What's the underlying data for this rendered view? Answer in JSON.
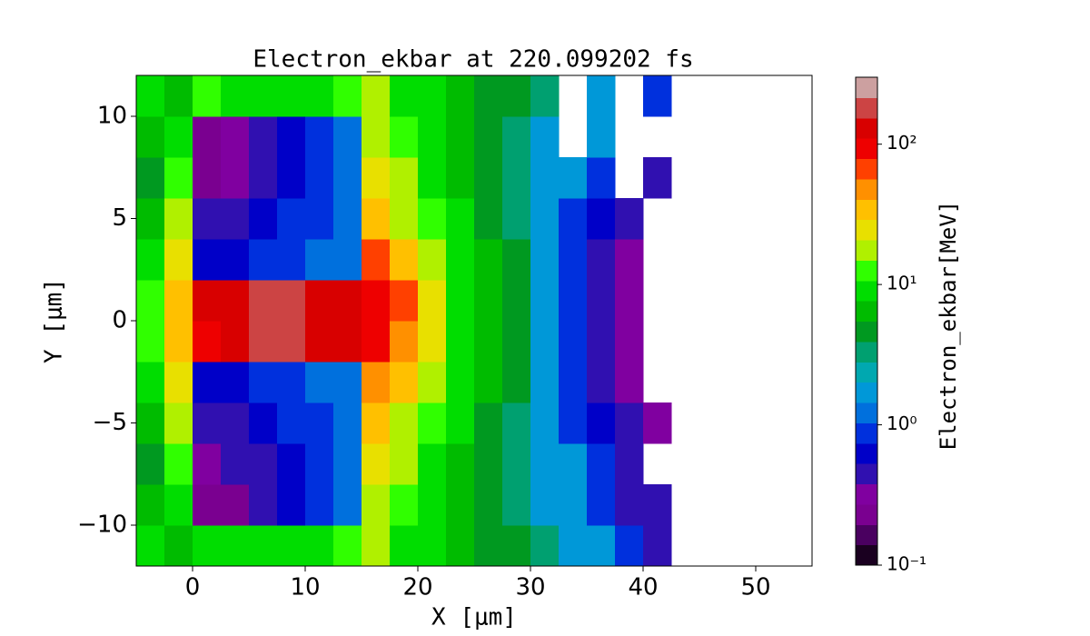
{
  "chart_data": {
    "type": "heatmap",
    "title": "Electron_ekbar at 220.099202 fs",
    "xlabel": "X [μm]",
    "ylabel": "Y [μm]",
    "colorbar_label": "Electron_ekbar[MeV]",
    "xlim": [
      -5,
      55
    ],
    "ylim": [
      -12,
      12
    ],
    "xticks": [
      0,
      10,
      20,
      30,
      40,
      50
    ],
    "yticks": [
      {
        "value": -10,
        "label": "−10"
      },
      {
        "value": -5,
        "label": "−5"
      },
      0,
      5,
      10
    ],
    "x_bins": [
      -5,
      -2.5,
      0,
      2.5,
      5,
      7.5,
      10,
      12.5,
      15,
      17.5,
      20,
      22.5,
      25,
      27.5,
      30,
      32.5,
      35,
      37.5,
      40,
      42.5,
      45,
      47.5,
      50,
      52.5,
      55
    ],
    "y_bins": [
      -12,
      -10,
      -8,
      -6,
      -4,
      -2,
      0,
      2,
      4,
      6,
      8,
      10,
      12
    ],
    "z": [
      [
        8,
        6,
        10,
        10,
        9,
        9,
        10,
        12,
        15,
        10,
        8,
        6,
        5,
        4,
        3,
        2,
        1.5,
        1,
        0.5,
        null,
        null,
        null,
        null,
        null
      ],
      [
        6,
        10,
        0.2,
        0.2,
        0.4,
        0.6,
        0.9,
        1.2,
        20,
        12,
        8,
        6,
        4,
        3,
        2,
        1.5,
        1,
        0.5,
        0.4,
        null,
        null,
        null,
        null,
        null
      ],
      [
        5,
        12,
        0.3,
        0.4,
        0.5,
        0.7,
        1,
        1.2,
        25,
        15,
        9,
        7,
        5,
        3,
        2,
        1.5,
        0.8,
        0.5,
        null,
        null,
        null,
        null,
        null,
        null
      ],
      [
        6,
        15,
        0.4,
        0.5,
        0.6,
        0.8,
        1,
        1.2,
        35,
        20,
        12,
        8,
        5,
        3,
        2,
        1,
        0.6,
        0.4,
        0.3,
        null,
        null,
        null,
        null,
        null
      ],
      [
        10,
        25,
        0.6,
        0.7,
        0.8,
        1,
        1.2,
        1.4,
        55,
        30,
        15,
        9,
        6,
        4,
        2,
        1,
        0.5,
        0.3,
        null,
        null,
        null,
        null,
        null,
        null
      ],
      [
        12,
        40,
        110,
        140,
        200,
        170,
        140,
        120,
        85,
        55,
        25,
        10,
        6,
        4,
        2,
        1,
        0.5,
        0.3,
        null,
        null,
        null,
        null,
        null,
        null
      ],
      [
        12,
        40,
        120,
        150,
        180,
        160,
        150,
        130,
        90,
        60,
        25,
        10,
        6,
        4,
        2,
        1,
        0.5,
        0.3,
        null,
        null,
        null,
        null,
        null,
        null
      ],
      [
        10,
        25,
        0.6,
        0.7,
        0.8,
        1,
        1.2,
        1.4,
        60,
        30,
        15,
        9,
        6,
        4,
        2,
        1,
        0.5,
        0.3,
        null,
        null,
        null,
        null,
        null,
        null
      ],
      [
        6,
        15,
        0.4,
        0.5,
        0.6,
        0.8,
        1,
        1.2,
        35,
        20,
        12,
        8,
        5,
        3,
        2,
        1,
        0.6,
        0.4,
        null,
        null,
        null,
        null,
        null,
        null
      ],
      [
        5,
        12,
        0.2,
        0.3,
        0.5,
        0.7,
        1,
        1.2,
        25,
        15,
        9,
        7,
        5,
        3,
        2,
        1.5,
        0.8,
        null,
        0.5,
        null,
        null,
        null,
        null,
        null
      ],
      [
        6,
        10,
        0.2,
        0.3,
        0.5,
        0.7,
        0.9,
        1.2,
        20,
        12,
        8,
        6,
        4,
        3,
        2,
        null,
        1.5,
        null,
        null,
        null,
        null,
        null,
        null,
        null
      ],
      [
        8,
        6,
        12,
        10,
        10,
        9,
        10,
        12,
        15,
        10,
        8,
        6,
        5,
        4,
        3,
        null,
        2,
        null,
        1,
        null,
        null,
        null,
        null,
        null
      ]
    ],
    "colorbar_scale": "log",
    "clim": [
      0.1,
      300
    ],
    "cticks": [
      {
        "value": 0.1,
        "label": "10⁻¹"
      },
      {
        "value": 1,
        "label": "10⁰"
      },
      {
        "value": 10,
        "label": "10¹"
      },
      {
        "value": 100,
        "label": "10²"
      }
    ],
    "colormap": [
      "#1a0020",
      "#4a0060",
      "#7a0090",
      "#8000a0",
      "#3010b0",
      "#0000c8",
      "#0030dd",
      "#0070dd",
      "#0098d8",
      "#00a8b0",
      "#00a070",
      "#009920",
      "#00bb00",
      "#00dd00",
      "#30ff00",
      "#b0f000",
      "#e8e000",
      "#ffc000",
      "#ff9000",
      "#ff4000",
      "#ee0000",
      "#d80000",
      "#cc4444",
      "#cca0a0"
    ]
  }
}
